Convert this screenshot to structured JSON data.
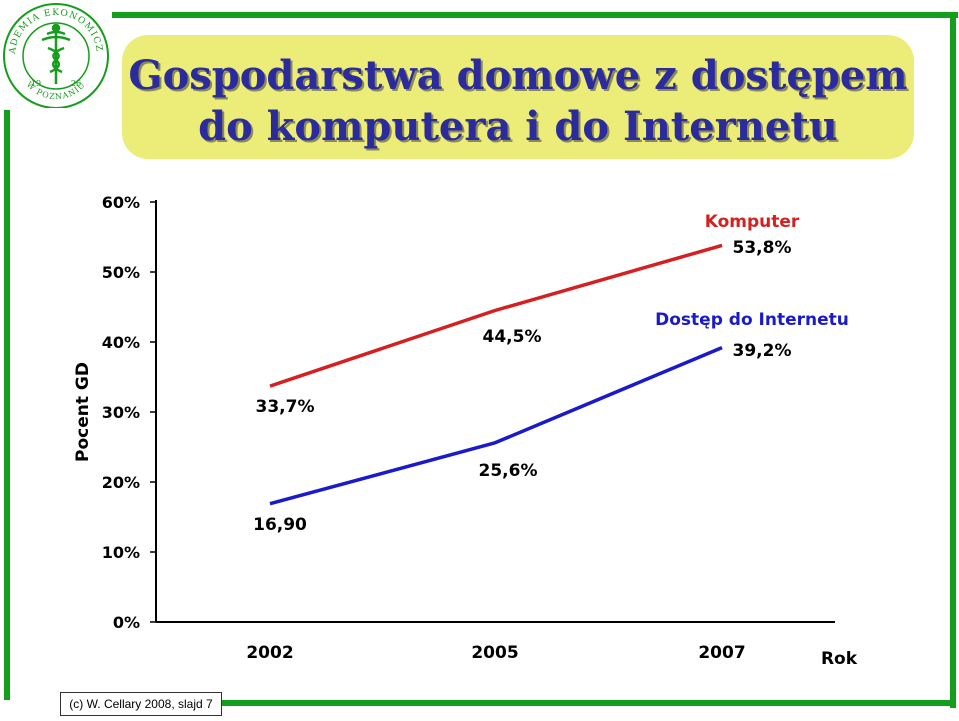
{
  "logo": {
    "text_top": "AKADEMIA EKONOMICZNA",
    "text_bottom": "W POZNANIU",
    "year_left": "19",
    "year_right": "26"
  },
  "slide": {
    "title_line1": "Gospodarstwa domowe z dostępem",
    "title_line2": "do komputera i do Internetu",
    "footer": "(c)  W. Cellary 2008, slajd 7"
  },
  "colors": {
    "frame": "#159d1c",
    "title_bg": "#ecec78",
    "title_text": "#2b2b9e",
    "series_komputer": "#d42020",
    "series_internet": "#1a1ac8"
  },
  "chart_data": {
    "type": "line",
    "x": [
      "2002",
      "2005",
      "2007"
    ],
    "xlabel": "Rok",
    "ylabel": "Pocent GD",
    "ylim": [
      0,
      60
    ],
    "yticks": [
      "0%",
      "10%",
      "20%",
      "30%",
      "40%",
      "50%",
      "60%"
    ],
    "series": [
      {
        "name": "Komputer",
        "values": [
          33.7,
          44.5,
          53.8
        ],
        "labels": [
          "33,7%",
          "44,5%",
          "53,8%"
        ]
      },
      {
        "name": "Dostęp do Internetu",
        "values": [
          16.9,
          25.6,
          39.2
        ],
        "labels": [
          "16,90",
          "25,6%",
          "39,2%"
        ]
      }
    ]
  }
}
